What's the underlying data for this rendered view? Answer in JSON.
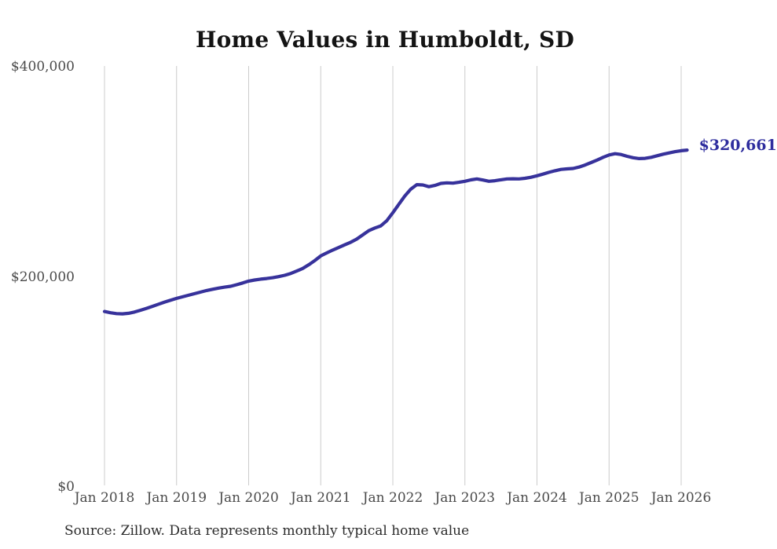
{
  "page": {
    "title": "Home Values in Humboldt, SD",
    "source_note": "Source: Zillow. Data represents monthly typical home value"
  },
  "chart_data": {
    "type": "line",
    "title": "Home Values in Humboldt, SD",
    "xlabel": "",
    "ylabel": "",
    "x_ticks": [
      "Jan 2018",
      "Jan 2019",
      "Jan 2020",
      "Jan 2021",
      "Jan 2022",
      "Jan 2023",
      "Jan 2024",
      "Jan 2025",
      "Jan 2026"
    ],
    "y_ticks": [
      {
        "label": "$0",
        "value": 0
      },
      {
        "label": "$200,000",
        "value": 200000
      },
      {
        "label": "$400,000",
        "value": 400000
      }
    ],
    "ylim": [
      0,
      400000
    ],
    "grid": "vertical-only",
    "legend": "none",
    "line_color": "#37329b",
    "gridline_color": "#cccccc",
    "annotation": {
      "label": "$320,661",
      "value": 320661,
      "color": "#2e2d9e"
    },
    "series": [
      {
        "name": "Monthly typical home value",
        "start": "2018-01",
        "frequency": "monthly",
        "values": [
          167000,
          165800,
          165000,
          164800,
          165300,
          166500,
          168200,
          170000,
          172000,
          174000,
          176000,
          177800,
          179500,
          181000,
          182500,
          184000,
          185500,
          187000,
          188200,
          189300,
          190200,
          191000,
          192500,
          194200,
          196000,
          197000,
          197800,
          198400,
          199200,
          200200,
          201500,
          203200,
          205500,
          208000,
          211500,
          215500,
          220000,
          222800,
          225500,
          228000,
          230500,
          233000,
          236000,
          240000,
          244000,
          246500,
          248500,
          253500,
          261000,
          269000,
          277000,
          283500,
          287800,
          287500,
          285800,
          287000,
          289000,
          289500,
          289200,
          290000,
          291000,
          292300,
          293200,
          292200,
          291000,
          291500,
          292400,
          293200,
          293400,
          293200,
          293800,
          294800,
          296200,
          297800,
          299500,
          301000,
          302300,
          302800,
          303200,
          304500,
          306500,
          308800,
          311200,
          313800,
          316000,
          317200,
          316500,
          314800,
          313400,
          312600,
          312800,
          313800,
          315300,
          316800,
          318000,
          319200,
          320100,
          320661
        ]
      }
    ]
  }
}
